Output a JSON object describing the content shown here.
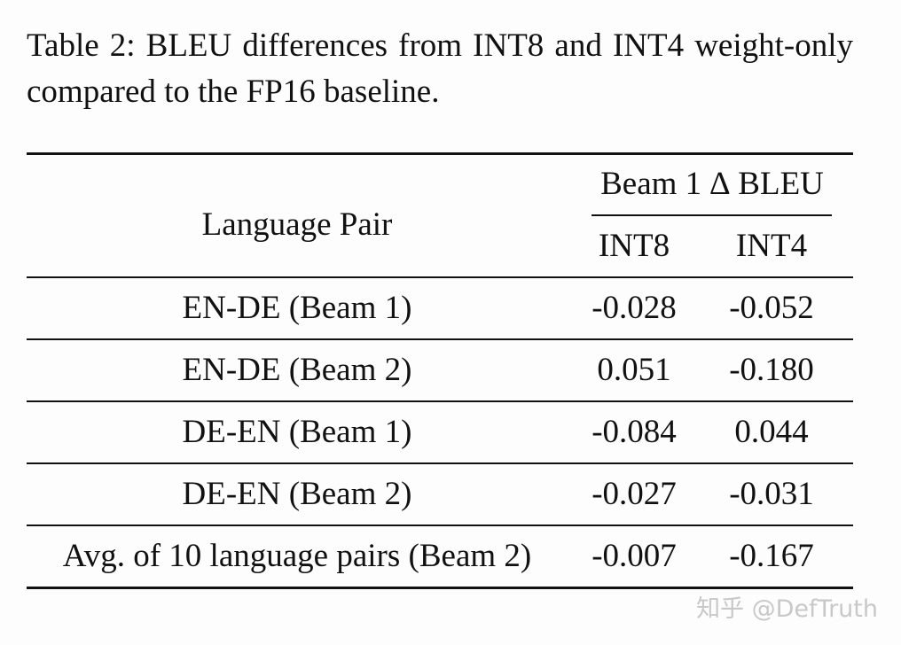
{
  "caption": "Table 2:  BLEU differences from INT8 and INT4 weight-only compared to the FP16 baseline.",
  "table": {
    "header": {
      "language_pair": "Language Pair",
      "group": "Beam 1 ∆ BLEU",
      "int8": "INT8",
      "int4": "INT4"
    },
    "rows": [
      {
        "pair": "EN-DE (Beam 1)",
        "int8": "-0.028",
        "int4": "-0.052"
      },
      {
        "pair": "EN-DE (Beam 2)",
        "int8": "0.051",
        "int4": "-0.180"
      },
      {
        "pair": "DE-EN (Beam 1)",
        "int8": "-0.084",
        "int4": "0.044"
      },
      {
        "pair": "DE-EN (Beam 2)",
        "int8": "-0.027",
        "int4": "-0.031"
      },
      {
        "pair": "Avg. of 10 language pairs (Beam 2)",
        "int8": "-0.007",
        "int4": "-0.167"
      }
    ]
  },
  "watermark": "知乎 @DefTruth"
}
